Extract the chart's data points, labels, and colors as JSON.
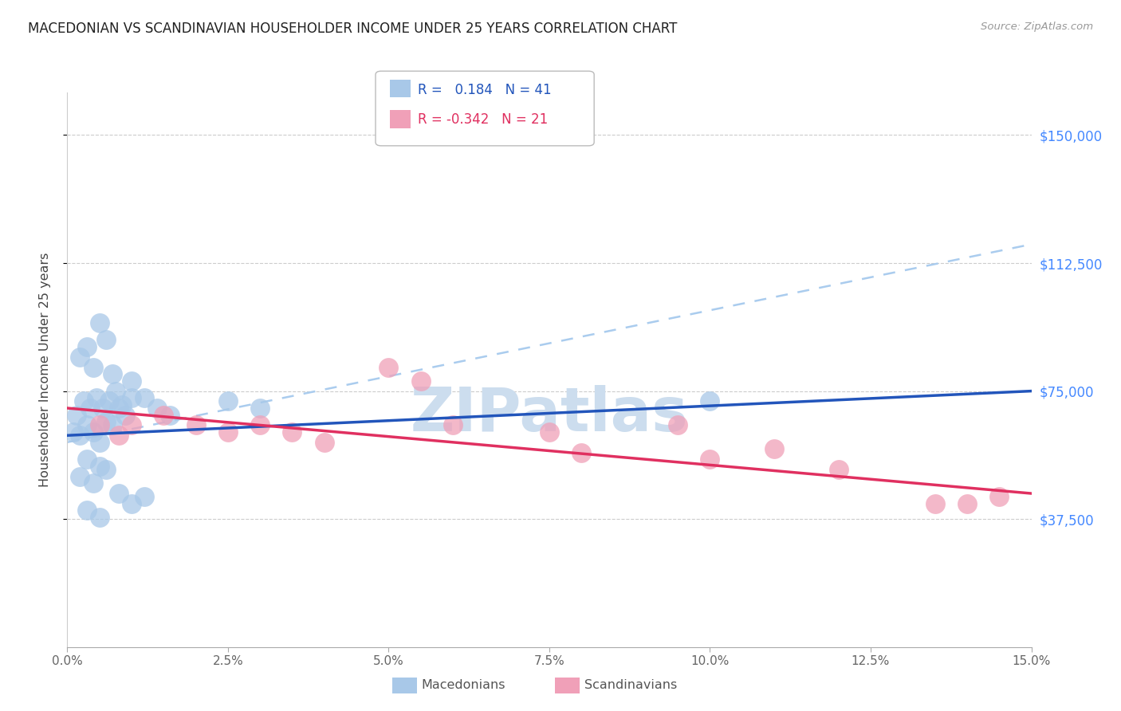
{
  "title": "MACEDONIAN VS SCANDINAVIAN HOUSEHOLDER INCOME UNDER 25 YEARS CORRELATION CHART",
  "source": "Source: ZipAtlas.com",
  "ylabel": "Householder Income Under 25 years",
  "ylim": [
    0,
    162500
  ],
  "xlim": [
    0.0,
    15.0
  ],
  "ytick_vals": [
    37500,
    75000,
    112500,
    150000
  ],
  "ytick_labels": [
    "$37,500",
    "$75,000",
    "$112,500",
    "$150,000"
  ],
  "xlabel_vals": [
    0.0,
    2.5,
    5.0,
    7.5,
    10.0,
    12.5,
    15.0
  ],
  "mac_R": 0.184,
  "mac_N": 41,
  "scan_R": -0.342,
  "scan_N": 21,
  "mac_color": "#a8c8e8",
  "scan_color": "#f0a0b8",
  "mac_line_color": "#2255bb",
  "scan_line_color": "#e03060",
  "dashed_line_color": "#aaccee",
  "background_color": "#ffffff",
  "grid_color": "#cccccc",
  "title_color": "#222222",
  "axis_label_color": "#444444",
  "right_tick_color": "#4488ff",
  "watermark_color": "#ccddeebb",
  "mac_x": [
    0.1,
    0.2,
    0.3,
    0.4,
    0.5,
    0.15,
    0.25,
    0.35,
    0.45,
    0.6,
    0.7,
    0.55,
    0.65,
    0.8,
    0.9,
    0.75,
    0.85,
    1.0,
    0.2,
    0.3,
    0.5,
    0.6,
    0.4,
    0.7,
    1.0,
    1.2,
    1.4,
    1.6,
    2.5,
    3.0,
    0.3,
    0.5,
    0.2,
    0.4,
    0.6,
    0.8,
    1.0,
    1.2,
    0.3,
    0.5,
    10.0
  ],
  "mac_y": [
    63000,
    62000,
    65000,
    63000,
    60000,
    68000,
    72000,
    70000,
    73000,
    66000,
    65000,
    70000,
    72000,
    70000,
    68000,
    75000,
    71000,
    73000,
    85000,
    88000,
    95000,
    90000,
    82000,
    80000,
    78000,
    73000,
    70000,
    68000,
    72000,
    70000,
    55000,
    53000,
    50000,
    48000,
    52000,
    45000,
    42000,
    44000,
    40000,
    38000,
    72000
  ],
  "scan_x": [
    0.5,
    0.8,
    1.0,
    1.5,
    2.0,
    2.5,
    3.0,
    3.5,
    4.0,
    5.0,
    5.5,
    6.0,
    7.5,
    8.0,
    9.5,
    10.0,
    11.0,
    12.0,
    13.5,
    14.0,
    14.5
  ],
  "scan_y": [
    65000,
    62000,
    65000,
    68000,
    65000,
    63000,
    65000,
    63000,
    60000,
    82000,
    78000,
    65000,
    63000,
    57000,
    65000,
    55000,
    58000,
    52000,
    42000,
    42000,
    44000
  ],
  "mac_trendline": [
    62000,
    75000
  ],
  "scan_trendline": [
    70000,
    45000
  ],
  "dashed_trendline": [
    60000,
    118000
  ]
}
